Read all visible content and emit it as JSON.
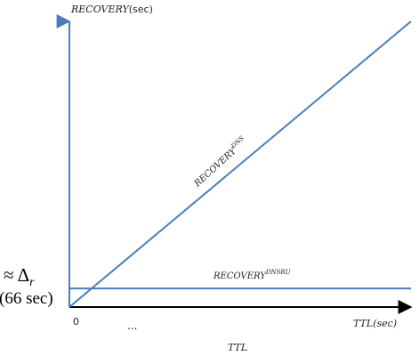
{
  "chart_data": {
    "type": "line",
    "x_axis": {
      "label": "TTL(sec)",
      "caption": "TTL",
      "ticks": [
        "0",
        "..."
      ]
    },
    "y_axis": {
      "label": "RECOVERY(sec)",
      "ticks": [
        "≈ Δr",
        "(66 sec)"
      ]
    },
    "series": [
      {
        "name": "RECOVERY^DNS",
        "label_main": "RECOVERY",
        "label_sup": "DNS",
        "description": "linear, increasing with TTL",
        "x": [
          0,
          1
        ],
        "y": [
          0,
          1
        ],
        "color": "#4a7ebb"
      },
      {
        "name": "RECOVERY^DNSRU",
        "label_main": "RECOVERY",
        "label_sup": "DNSRU",
        "description": "constant at approx Δr (66 sec)",
        "x": [
          0,
          1
        ],
        "y": [
          0.065,
          0.065
        ],
        "color": "#4a7ebb"
      }
    ],
    "grid": false,
    "legend": "inline labels"
  },
  "labels": {
    "y_title": "RECOVERY",
    "y_title_unit": "(sec)",
    "x_title": "TTL",
    "x_title_unit": "(sec)",
    "x_caption": "TTL",
    "x_tick_zero": "0",
    "x_tick_dots": "...",
    "delta_prefix": "≈ Δ",
    "delta_sub": "r",
    "delta_value": "(66 sec)",
    "dns_main": "RECOVERY",
    "dns_sup": "DNS",
    "dnsru_main": "RECOVERY",
    "dnsru_sup": "DNSRU"
  },
  "colors": {
    "line": "#4a7ebb",
    "axis_y": "#4a7ebb",
    "axis_x": "#000000"
  }
}
